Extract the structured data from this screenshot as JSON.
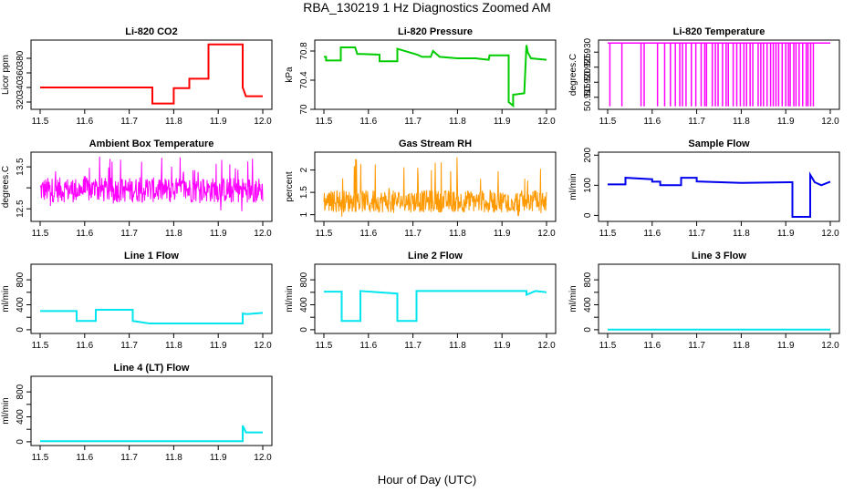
{
  "figure": {
    "title": "RBA_130219  1 Hz Diagnostics Zoomed AM",
    "xlabel": "Hour of Day (UTC)"
  },
  "chart_data": [
    {
      "type": "line",
      "title": "Li-820 CO2",
      "ylabel": "Licor ppm",
      "xlim": [
        11.5,
        12.0
      ],
      "ylim": [
        310,
        405
      ],
      "yticks": [
        320,
        340,
        360,
        380
      ],
      "xticks": [
        11.5,
        11.6,
        11.7,
        11.8,
        11.9,
        12.0
      ],
      "color": "#ff0000",
      "series": [
        {
          "x": [
            11.5,
            11.752,
            11.752,
            11.8,
            11.8,
            11.835,
            11.835,
            11.878,
            11.878,
            11.955,
            11.955,
            11.962,
            11.962,
            12.0
          ],
          "y": [
            340,
            340,
            318,
            318,
            339,
            339,
            352,
            352,
            399,
            399,
            340,
            328,
            328,
            328
          ]
        }
      ]
    },
    {
      "type": "line",
      "title": "Li-820 Pressure",
      "ylabel": "kPa",
      "xlim": [
        11.5,
        12.0
      ],
      "ylim": [
        70.0,
        70.95
      ],
      "yticks": [
        70.0,
        70.4,
        70.8
      ],
      "xticks": [
        11.5,
        11.6,
        11.7,
        11.8,
        11.9,
        12.0
      ],
      "color": "#00cc00",
      "series": [
        {
          "x": [
            11.5,
            11.505,
            11.505,
            11.538,
            11.538,
            11.57,
            11.575,
            11.585,
            11.625,
            11.625,
            11.665,
            11.665,
            11.71,
            11.72,
            11.74,
            11.745,
            11.76,
            11.8,
            11.84,
            11.87,
            11.872,
            11.915,
            11.915,
            11.925,
            11.925,
            11.95,
            11.955,
            11.958,
            11.965,
            12.0
          ],
          "y": [
            70.72,
            70.72,
            70.67,
            70.67,
            70.85,
            70.85,
            70.76,
            70.76,
            70.75,
            70.66,
            70.66,
            70.83,
            70.75,
            70.72,
            70.72,
            70.8,
            70.72,
            70.7,
            70.7,
            70.68,
            70.74,
            70.74,
            70.1,
            70.05,
            70.2,
            70.22,
            70.88,
            70.78,
            70.7,
            70.68
          ]
        }
      ]
    },
    {
      "type": "line",
      "title": "Li-820 Temperature",
      "ylabel": "degrees.C",
      "xlim": [
        11.5,
        12.0
      ],
      "ylim": [
        50.911,
        50.934
      ],
      "yticks": [
        50.915,
        50.92,
        50.925,
        50.93
      ],
      "ytick_labels": [
        "50.915",
        "50.920",
        "50.925",
        "50.930"
      ],
      "xticks": [
        11.5,
        11.6,
        11.7,
        11.8,
        11.9,
        12.0
      ],
      "color": "#ff00ff",
      "baseline": 50.933,
      "low": 50.912,
      "dip_x": [
        11.505,
        11.532,
        11.575,
        11.582,
        11.612,
        11.628,
        11.641,
        11.652,
        11.662,
        11.668,
        11.676,
        11.688,
        11.698,
        11.71,
        11.718,
        11.722,
        11.735,
        11.742,
        11.748,
        11.758,
        11.766,
        11.771,
        11.782,
        11.79,
        11.798,
        11.806,
        11.812,
        11.82,
        11.826,
        11.838,
        11.844,
        11.85,
        11.858,
        11.866,
        11.872,
        11.878,
        11.884,
        11.892,
        11.9,
        11.906,
        11.91,
        11.918,
        11.923,
        11.93,
        11.938,
        11.946,
        11.95,
        11.956,
        11.962
      ]
    },
    {
      "type": "line",
      "title": "Ambient Box Temperature",
      "ylabel": "degrees.C",
      "xlim": [
        11.5,
        12.0
      ],
      "ylim": [
        12.2,
        13.85
      ],
      "yticks": [
        12.5,
        13.0,
        13.5
      ],
      "ytick_labels": [
        "12.5",
        "",
        "13.5"
      ],
      "xticks": [
        11.5,
        11.6,
        11.7,
        11.8,
        11.9,
        12.0
      ],
      "color": "#ff00ff",
      "noise": {
        "center": 12.95,
        "spread": 0.3,
        "spike_low": 12.4,
        "spike_high": 13.75
      }
    },
    {
      "type": "line",
      "title": "Gas Stream RH",
      "ylabel": "percent",
      "xlim": [
        11.5,
        12.0
      ],
      "ylim": [
        0.85,
        2.4
      ],
      "yticks": [
        1.0,
        1.5,
        2.0
      ],
      "xticks": [
        11.5,
        11.6,
        11.7,
        11.8,
        11.9,
        12.0
      ],
      "color": "#ff9900",
      "noise": {
        "center": 1.3,
        "spread": 0.25,
        "spike_low": 0.92,
        "spike_high": 2.3
      }
    },
    {
      "type": "line",
      "title": "Sample Flow",
      "ylabel": "ml/min",
      "xlim": [
        11.5,
        12.0
      ],
      "ylim": [
        -20,
        210
      ],
      "yticks": [
        0,
        100,
        200
      ],
      "xticks": [
        11.5,
        11.6,
        11.7,
        11.8,
        11.9,
        12.0
      ],
      "color": "#0000ee",
      "series": [
        {
          "x": [
            11.5,
            11.54,
            11.54,
            11.6,
            11.6,
            11.618,
            11.618,
            11.665,
            11.665,
            11.7,
            11.7,
            11.8,
            11.8,
            11.91,
            11.915,
            11.915,
            11.955,
            11.955,
            11.965,
            11.98,
            12.0
          ],
          "y": [
            103,
            103,
            125,
            120,
            112,
            112,
            100,
            100,
            125,
            125,
            113,
            108,
            108,
            110,
            110,
            -5,
            -5,
            135,
            110,
            100,
            112
          ]
        }
      ]
    },
    {
      "type": "line",
      "title": "Line 1 Flow",
      "ylabel": "ml/min",
      "xlim": [
        11.5,
        12.0
      ],
      "ylim": [
        -60,
        1050
      ],
      "yticks": [
        0,
        200,
        400,
        600,
        800
      ],
      "ytick_labels": [
        "0",
        "",
        "400",
        "",
        "800"
      ],
      "xticks": [
        11.5,
        11.6,
        11.7,
        11.8,
        11.9,
        12.0
      ],
      "color": "#00e5ee",
      "series": [
        {
          "x": [
            11.5,
            11.582,
            11.582,
            11.625,
            11.625,
            11.708,
            11.708,
            11.745,
            11.9,
            11.955,
            11.955,
            11.965,
            12.0
          ],
          "y": [
            300,
            300,
            140,
            140,
            320,
            320,
            140,
            100,
            100,
            100,
            260,
            250,
            270
          ]
        }
      ]
    },
    {
      "type": "line",
      "title": "Line 2 Flow",
      "ylabel": "ml/min",
      "xlim": [
        11.5,
        12.0
      ],
      "ylim": [
        -60,
        1050
      ],
      "yticks": [
        0,
        200,
        400,
        600,
        800
      ],
      "ytick_labels": [
        "0",
        "",
        "400",
        "",
        "800"
      ],
      "xticks": [
        11.5,
        11.6,
        11.7,
        11.8,
        11.9,
        12.0
      ],
      "color": "#00e5ee",
      "series": [
        {
          "x": [
            11.5,
            11.54,
            11.54,
            11.582,
            11.582,
            11.665,
            11.665,
            11.708,
            11.708,
            11.955,
            11.955,
            11.975,
            12.0
          ],
          "y": [
            610,
            610,
            140,
            140,
            620,
            580,
            140,
            140,
            620,
            620,
            560,
            620,
            600
          ]
        }
      ]
    },
    {
      "type": "line",
      "title": "Line 3 Flow",
      "ylabel": "ml/min",
      "xlim": [
        11.5,
        12.0
      ],
      "ylim": [
        -60,
        1050
      ],
      "yticks": [
        0,
        200,
        400,
        600,
        800
      ],
      "ytick_labels": [
        "0",
        "",
        "400",
        "",
        "800"
      ],
      "xticks": [
        11.5,
        11.6,
        11.7,
        11.8,
        11.9,
        12.0
      ],
      "color": "#00e5ee",
      "series": [
        {
          "x": [
            11.5,
            12.0
          ],
          "y": [
            2,
            2
          ]
        }
      ]
    },
    {
      "type": "line",
      "title": "Line 4 (LT) Flow",
      "ylabel": "ml/min",
      "xlim": [
        11.5,
        12.0
      ],
      "ylim": [
        -60,
        1050
      ],
      "yticks": [
        0,
        200,
        400,
        600,
        800
      ],
      "ytick_labels": [
        "0",
        "",
        "400",
        "",
        "800"
      ],
      "xticks": [
        11.5,
        11.6,
        11.7,
        11.8,
        11.9,
        12.0
      ],
      "color": "#00e5ee",
      "series": [
        {
          "x": [
            11.5,
            11.955,
            11.955,
            11.962,
            11.965,
            12.0
          ],
          "y": [
            10,
            10,
            260,
            150,
            150,
            150
          ]
        }
      ]
    }
  ]
}
